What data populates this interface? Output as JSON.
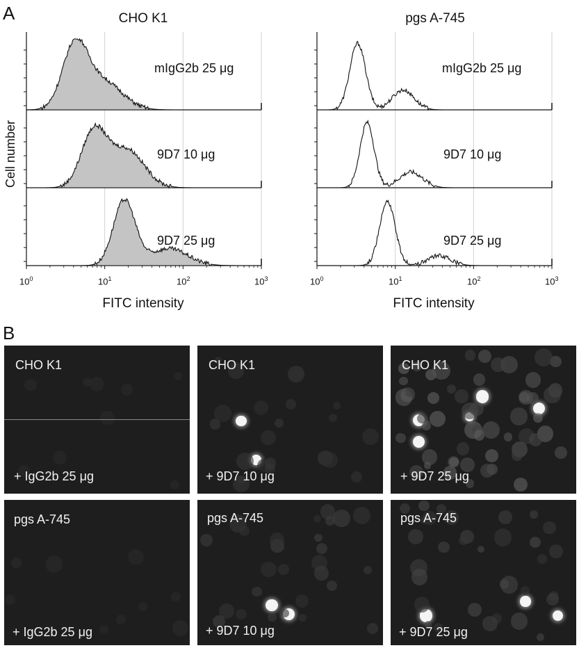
{
  "panel_a": {
    "letter": "A",
    "ylabel": "Cell number",
    "xlabel": "FITC intensity",
    "xticks": [
      {
        "base": "10",
        "exp": "0"
      },
      {
        "base": "10",
        "exp": "1"
      },
      {
        "base": "10",
        "exp": "2"
      },
      {
        "base": "10",
        "exp": "3"
      }
    ],
    "columns": [
      {
        "title": "CHO K1",
        "filled": true,
        "rows": [
          {
            "label": "mIgG2b 25 μg",
            "peaks": [
              {
                "x": 0.62,
                "w": 0.16,
                "h": 0.88
              },
              {
                "x": 0.98,
                "w": 0.24,
                "h": 0.4
              }
            ]
          },
          {
            "label": "9D7 10 μg",
            "peaks": [
              {
                "x": 0.86,
                "w": 0.16,
                "h": 0.78
              },
              {
                "x": 1.28,
                "w": 0.22,
                "h": 0.54
              }
            ]
          },
          {
            "label": "9D7 25 μg",
            "peaks": [
              {
                "x": 1.25,
                "w": 0.14,
                "h": 0.92
              },
              {
                "x": 1.82,
                "w": 0.24,
                "h": 0.24
              }
            ]
          }
        ]
      },
      {
        "title": "pgs A-745",
        "filled": false,
        "rows": [
          {
            "label": "mIgG2b 25 μg",
            "peaks": [
              {
                "x": 0.52,
                "w": 0.1,
                "h": 0.94
              },
              {
                "x": 1.1,
                "w": 0.14,
                "h": 0.28
              }
            ]
          },
          {
            "label": "9D7 10 μg",
            "peaks": [
              {
                "x": 0.64,
                "w": 0.09,
                "h": 0.92
              },
              {
                "x": 1.2,
                "w": 0.15,
                "h": 0.22
              }
            ]
          },
          {
            "label": "9D7 25 μg",
            "peaks": [
              {
                "x": 0.9,
                "w": 0.1,
                "h": 0.9
              },
              {
                "x": 1.56,
                "w": 0.15,
                "h": 0.14
              }
            ]
          }
        ]
      }
    ]
  },
  "panel_b": {
    "letter": "B",
    "images": [
      {
        "top": "CHO K1",
        "bottom": "+ IgG2b 25 μg",
        "brightness": 0.05
      },
      {
        "top": "CHO K1",
        "bottom": "+ 9D7 10 μg",
        "brightness": 0.25
      },
      {
        "top": "CHO K1",
        "bottom": "+ 9D7 25 μg",
        "brightness": 0.85
      },
      {
        "top": "pgs A-745",
        "bottom": "+ IgG2b 25 μg",
        "brightness": 0.05
      },
      {
        "top": "pgs A-745",
        "bottom": "+ 9D7 10 μg",
        "brightness": 0.35
      },
      {
        "top": "pgs A-745",
        "bottom": "+ 9D7 25 μg",
        "brightness": 0.45
      }
    ]
  }
}
